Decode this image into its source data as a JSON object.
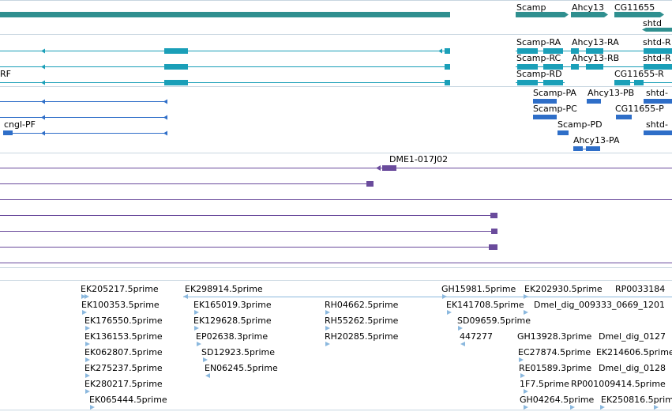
{
  "colors": {
    "gene_bar": "#2f8f8f",
    "transcript": "#1a9fb8",
    "protein": "#2e6ec8",
    "cdna": "#6a4b9c",
    "est": "#8bb8de",
    "separator": "#c8d6e0"
  },
  "tracks": {
    "genes": {
      "labels": [
        "Scamp",
        "Ahcy13",
        "CG11655",
        "shtd"
      ]
    },
    "transcripts": {
      "labels": [
        "Scamp-RA",
        "Ahcy13-RA",
        "shtd-R",
        "Scamp-RC",
        "Ahcy13-RB",
        "shtd-R",
        "RF",
        "Scamp-RD",
        "CG11655-R"
      ]
    },
    "proteins": {
      "labels": [
        "Scamp-PA",
        "Ahcy13-PB",
        "shtd-",
        "Scamp-PC",
        "CG11655-P",
        "cngl-PF",
        "Scamp-PD",
        "shtd-",
        "Ahcy13-PA"
      ]
    },
    "cdna": {
      "labels": [
        "DME1-017J02"
      ]
    },
    "ests": {
      "labels": [
        "EK205217.5prime",
        "EK298914.5prime",
        "GH15981.5prime",
        "EK202930.5prime",
        "RP0033184",
        "EK100353.5prime",
        "EK165019.3prime",
        "RH04662.5prime",
        "EK141708.5prime",
        "Dmel_dig_009333_0669_1201",
        "EK176550.5prime",
        "EK129628.5prime",
        "RH55262.5prime",
        "SD09659.5prime",
        "EK136153.5prime",
        "EP02638.3prime",
        "RH20285.5prime",
        "447277",
        "EK062807.5prime",
        "SD12923.5prime",
        "GH13928.3prime",
        "Dmel_dig_0127",
        "EK275237.5prime",
        "EN06245.5prime",
        "EC27874.5prime",
        "EK214606.5prime",
        "EK280217.5prime",
        "RE01589.3prime",
        "Dmel_dig_0128",
        "EK065444.5prime",
        "1F7.5prime",
        "RP001009414.5prime",
        "GH04264.5prime",
        "EK250816.5prime"
      ]
    }
  }
}
